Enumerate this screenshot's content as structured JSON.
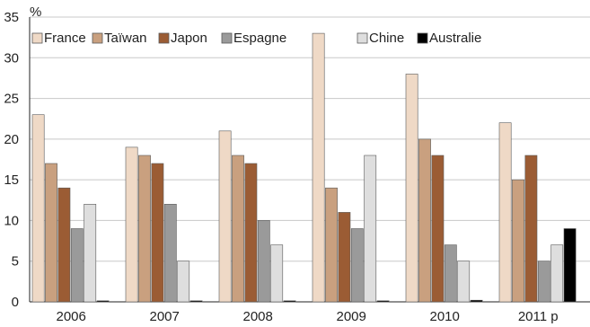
{
  "chart_data": {
    "type": "bar",
    "y_unit": "%",
    "categories": [
      "2006",
      "2007",
      "2008",
      "2009",
      "2010",
      "2011 p"
    ],
    "ylim": [
      0,
      35
    ],
    "yticks": [
      0,
      5,
      10,
      15,
      20,
      25,
      30,
      35
    ],
    "grid": true,
    "legend_position": "top",
    "series": [
      {
        "name": "France",
        "color": "#efd9c6",
        "values": [
          23,
          19,
          21,
          33,
          28,
          22
        ]
      },
      {
        "name": "Taïwan",
        "color": "#c9a07f",
        "values": [
          17,
          18,
          18,
          14,
          20,
          15
        ]
      },
      {
        "name": "Japon",
        "color": "#9b5c34",
        "values": [
          14,
          17,
          17,
          11,
          18,
          18
        ]
      },
      {
        "name": "Espagne",
        "color": "#9a9a9a",
        "values": [
          9,
          12,
          10,
          9,
          7,
          5
        ]
      },
      {
        "name": "Chine",
        "color": "#dedede",
        "values": [
          12,
          5,
          7,
          18,
          5,
          7
        ]
      },
      {
        "name": "Australie",
        "color": "#000000",
        "values": [
          0,
          0,
          0,
          0,
          0.2,
          9
        ]
      }
    ]
  }
}
